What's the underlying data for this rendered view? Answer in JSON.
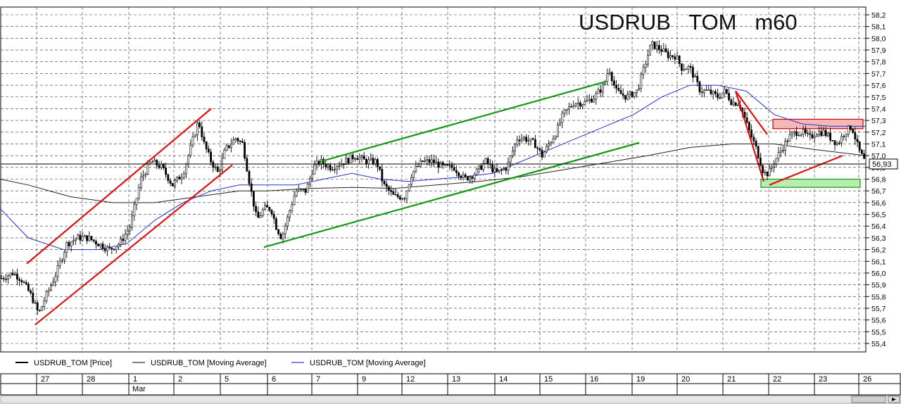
{
  "chart_data": {
    "type": "candlestick",
    "title": "USDRUB   TOM   m60",
    "yticks": [
      "58,2",
      "58,1",
      "58,0",
      "57,9",
      "57,8",
      "57,7",
      "57,6",
      "57,5",
      "57,4",
      "57,3",
      "57,2",
      "57,1",
      "57,0",
      "56,9",
      "56,8",
      "56,7",
      "56,6",
      "56,5",
      "56,4",
      "56,3",
      "56,2",
      "56,1",
      "56,0",
      "55,9",
      "55,8",
      "55,7",
      "55,6",
      "55,5",
      "55,4"
    ],
    "ylim": [
      55.35,
      58.25
    ],
    "last_price": 56.93,
    "last_price_label": "56,93",
    "x_day_labels": [
      "27",
      "28",
      "1",
      "2",
      "5",
      "6",
      "7",
      "9",
      "12",
      "13",
      "14",
      "15",
      "16",
      "19",
      "20",
      "21",
      "22",
      "23",
      "26"
    ],
    "month_label": "Mar",
    "legend": [
      {
        "label": "USDRUB_TOM [Price]",
        "color": "#000000"
      },
      {
        "label": "USDRUB_TOM [Moving Average]",
        "color": "#000000"
      },
      {
        "label": "USDRUB_TOM [Moving Average]",
        "color": "#0000cc"
      }
    ],
    "price_path": [
      [
        0,
        55.95
      ],
      [
        18,
        56.0
      ],
      [
        30,
        55.95
      ],
      [
        45,
        55.8
      ],
      [
        55,
        55.65
      ],
      [
        65,
        55.8
      ],
      [
        80,
        56.0
      ],
      [
        95,
        56.25
      ],
      [
        110,
        56.3
      ],
      [
        125,
        56.3
      ],
      [
        140,
        56.25
      ],
      [
        155,
        56.2
      ],
      [
        170,
        56.25
      ],
      [
        185,
        56.4
      ],
      [
        200,
        56.8
      ],
      [
        215,
        56.95
      ],
      [
        230,
        56.9
      ],
      [
        245,
        56.75
      ],
      [
        260,
        56.85
      ],
      [
        270,
        57.05
      ],
      [
        282,
        57.3
      ],
      [
        290,
        57.1
      ],
      [
        300,
        56.95
      ],
      [
        310,
        56.85
      ],
      [
        320,
        57.05
      ],
      [
        335,
        57.15
      ],
      [
        345,
        57.1
      ],
      [
        355,
        56.75
      ],
      [
        365,
        56.45
      ],
      [
        375,
        56.55
      ],
      [
        385,
        56.55
      ],
      [
        392,
        56.4
      ],
      [
        400,
        56.3
      ],
      [
        410,
        56.5
      ],
      [
        420,
        56.7
      ],
      [
        435,
        56.7
      ],
      [
        445,
        56.9
      ],
      [
        455,
        56.95
      ],
      [
        470,
        56.9
      ],
      [
        490,
        56.95
      ],
      [
        505,
        57.0
      ],
      [
        520,
        56.95
      ],
      [
        535,
        56.95
      ],
      [
        545,
        56.75
      ],
      [
        560,
        56.65
      ],
      [
        575,
        56.65
      ],
      [
        585,
        56.85
      ],
      [
        600,
        56.95
      ],
      [
        615,
        56.95
      ],
      [
        630,
        56.9
      ],
      [
        645,
        56.9
      ],
      [
        660,
        56.8
      ],
      [
        675,
        56.85
      ],
      [
        690,
        56.95
      ],
      [
        705,
        56.85
      ],
      [
        720,
        56.9
      ],
      [
        735,
        57.15
      ],
      [
        745,
        57.15
      ],
      [
        760,
        57.1
      ],
      [
        770,
        57.0
      ],
      [
        780,
        57.1
      ],
      [
        790,
        57.2
      ],
      [
        800,
        57.35
      ],
      [
        815,
        57.45
      ],
      [
        830,
        57.45
      ],
      [
        845,
        57.5
      ],
      [
        858,
        57.6
      ],
      [
        865,
        57.75
      ],
      [
        875,
        57.55
      ],
      [
        890,
        57.5
      ],
      [
        905,
        57.55
      ],
      [
        915,
        57.75
      ],
      [
        925,
        57.95
      ],
      [
        940,
        57.9
      ],
      [
        950,
        57.85
      ],
      [
        960,
        57.85
      ],
      [
        968,
        57.75
      ],
      [
        980,
        57.75
      ],
      [
        995,
        57.55
      ],
      [
        1005,
        57.55
      ],
      [
        1020,
        57.5
      ],
      [
        1030,
        57.55
      ],
      [
        1040,
        57.45
      ],
      [
        1050,
        57.45
      ],
      [
        1065,
        57.2
      ],
      [
        1075,
        57.05
      ],
      [
        1085,
        56.85
      ],
      [
        1092,
        56.85
      ],
      [
        1100,
        56.95
      ],
      [
        1110,
        57.05
      ],
      [
        1120,
        57.15
      ],
      [
        1130,
        57.2
      ],
      [
        1140,
        57.2
      ],
      [
        1150,
        57.15
      ],
      [
        1160,
        57.2
      ],
      [
        1170,
        57.2
      ],
      [
        1180,
        57.15
      ],
      [
        1190,
        57.1
      ],
      [
        1200,
        57.2
      ],
      [
        1210,
        57.25
      ],
      [
        1220,
        57.05
      ],
      [
        1230,
        56.93
      ]
    ],
    "ma_black": [
      [
        0,
        56.8
      ],
      [
        40,
        56.75
      ],
      [
        100,
        56.65
      ],
      [
        160,
        56.6
      ],
      [
        220,
        56.6
      ],
      [
        280,
        56.65
      ],
      [
        340,
        56.7
      ],
      [
        380,
        56.7
      ],
      [
        440,
        56.72
      ],
      [
        500,
        56.73
      ],
      [
        560,
        56.72
      ],
      [
        620,
        56.75
      ],
      [
        680,
        56.78
      ],
      [
        740,
        56.82
      ],
      [
        800,
        56.88
      ],
      [
        860,
        56.94
      ],
      [
        920,
        57.0
      ],
      [
        980,
        57.07
      ],
      [
        1040,
        57.1
      ],
      [
        1100,
        57.1
      ],
      [
        1160,
        57.05
      ],
      [
        1230,
        57.0
      ]
    ],
    "ma_blue": [
      [
        0,
        56.55
      ],
      [
        40,
        56.3
      ],
      [
        90,
        56.2
      ],
      [
        140,
        56.2
      ],
      [
        180,
        56.25
      ],
      [
        220,
        56.45
      ],
      [
        260,
        56.6
      ],
      [
        300,
        56.7
      ],
      [
        340,
        56.75
      ],
      [
        380,
        56.75
      ],
      [
        420,
        56.75
      ],
      [
        460,
        56.8
      ],
      [
        500,
        56.85
      ],
      [
        540,
        56.8
      ],
      [
        580,
        56.78
      ],
      [
        620,
        56.8
      ],
      [
        660,
        56.82
      ],
      [
        700,
        56.85
      ],
      [
        740,
        56.95
      ],
      [
        780,
        57.05
      ],
      [
        820,
        57.15
      ],
      [
        860,
        57.25
      ],
      [
        900,
        57.35
      ],
      [
        940,
        57.5
      ],
      [
        980,
        57.6
      ],
      [
        1020,
        57.6
      ],
      [
        1060,
        57.55
      ],
      [
        1100,
        57.35
      ],
      [
        1140,
        57.27
      ],
      [
        1180,
        57.25
      ],
      [
        1230,
        57.25
      ]
    ],
    "trendlines": [
      {
        "color": "#dd1111",
        "x1": 38,
        "y1": 56.08,
        "x2": 300,
        "y2": 57.4
      },
      {
        "color": "#dd1111",
        "x1": 50,
        "y1": 55.56,
        "x2": 330,
        "y2": 56.92
      },
      {
        "color": "#119911",
        "x1": 455,
        "y1": 56.95,
        "x2": 860,
        "y2": 57.63
      },
      {
        "color": "#119911",
        "x1": 375,
        "y1": 56.22,
        "x2": 908,
        "y2": 57.11
      },
      {
        "color": "#dd1111",
        "x1": 1045,
        "y1": 57.55,
        "x2": 1090,
        "y2": 57.18
      },
      {
        "color": "#dd1111",
        "x1": 1045,
        "y1": 57.55,
        "x2": 1085,
        "y2": 56.78
      },
      {
        "color": "#dd1111",
        "x1": 1093,
        "y1": 56.75,
        "x2": 1197,
        "y2": 57.0
      }
    ],
    "zones": [
      {
        "fill": "#f4b8b8",
        "stroke": "#cc0000",
        "x1": 1098,
        "x2": 1226,
        "y1": 57.23,
        "y2": 57.31
      },
      {
        "fill": "#b8ecb0",
        "stroke": "#119911",
        "x1": 1081,
        "x2": 1222,
        "y1": 56.73,
        "y2": 56.8
      }
    ]
  }
}
